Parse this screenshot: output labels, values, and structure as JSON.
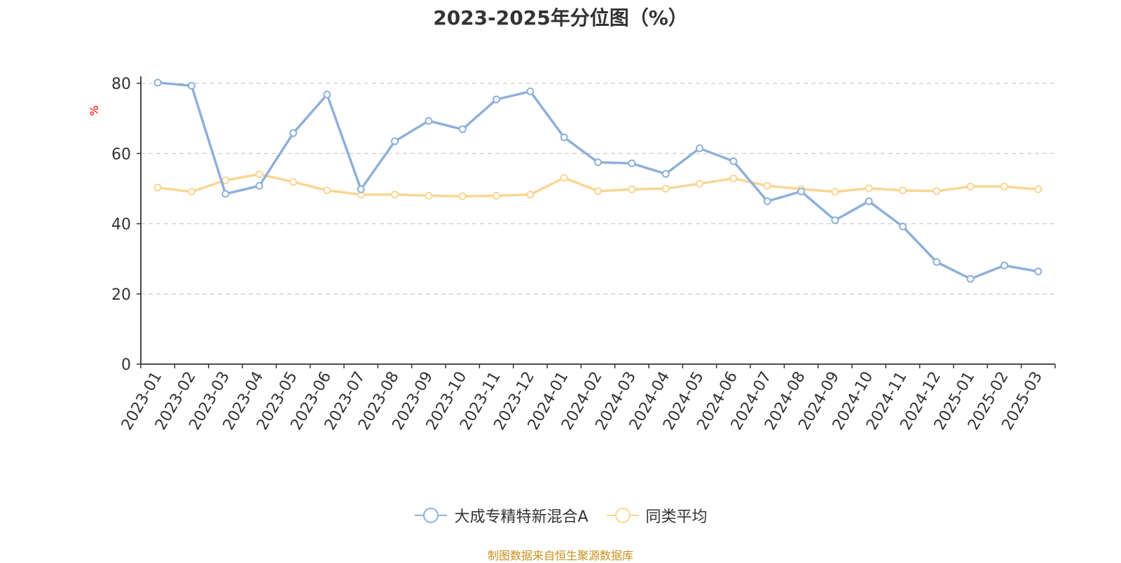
{
  "chart_data": {
    "type": "line",
    "title": "2023-2025年分位图（%）",
    "ylabel": "%",
    "xlabel": "",
    "ylim": [
      0,
      80
    ],
    "yticks": [
      0,
      20,
      40,
      60,
      80
    ],
    "grid": true,
    "legend_position": "bottom",
    "categories": [
      "2023-01",
      "2023-02",
      "2023-03",
      "2023-04",
      "2023-05",
      "2023-06",
      "2023-07",
      "2023-08",
      "2023-09",
      "2023-10",
      "2023-11",
      "2023-12",
      "2024-01",
      "2024-02",
      "2024-03",
      "2024-04",
      "2024-05",
      "2024-06",
      "2024-07",
      "2024-08",
      "2024-09",
      "2024-10",
      "2024-11",
      "2024-12",
      "2025-01",
      "2025-02",
      "2025-03"
    ],
    "series": [
      {
        "name": "大成专精特新混合A",
        "color": "#8fb0da",
        "values": [
          80.2,
          79.3,
          48.5,
          50.8,
          65.8,
          76.8,
          49.8,
          63.5,
          69.3,
          66.9,
          75.4,
          77.7,
          64.6,
          57.5,
          57.2,
          54.2,
          61.5,
          57.8,
          46.4,
          49.2,
          41.0,
          46.4,
          39.2,
          29.1,
          24.3,
          28.1,
          26.4
        ]
      },
      {
        "name": "同类平均",
        "color": "#fbd592",
        "values": [
          50.3,
          49.1,
          52.4,
          54.1,
          51.9,
          49.5,
          48.3,
          48.3,
          48.0,
          47.8,
          48.0,
          48.3,
          53.1,
          49.3,
          49.8,
          50.0,
          51.4,
          52.9,
          50.8,
          49.9,
          49.1,
          50.1,
          49.5,
          49.3,
          50.6,
          50.6,
          49.8
        ]
      }
    ]
  },
  "source_note": "制图数据来自恒生聚源数据库",
  "colors": {
    "axis": "#333333",
    "grid": "#cccccc",
    "ylabel": "#ff0000",
    "source": "#c8901e"
  }
}
